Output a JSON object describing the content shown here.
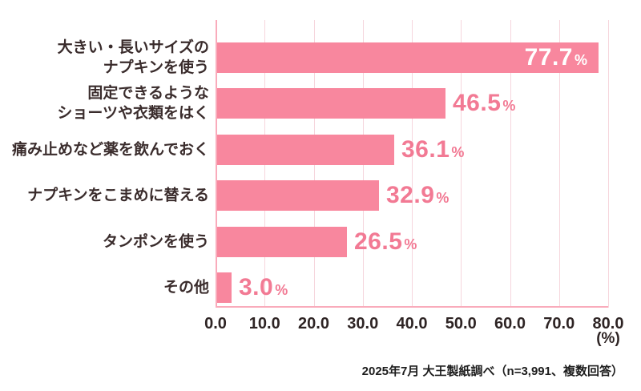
{
  "chart_data": {
    "type": "bar",
    "orientation": "horizontal",
    "title": "",
    "categories": [
      "大きい・長いサイズの\nナプキンを使う",
      "固定できるような\nショーツや衣類をはく",
      "痛み止めなど薬を飲んでおく",
      "ナプキンをこまめに替える",
      "タンポンを使う",
      "その他"
    ],
    "values": [
      77.7,
      46.5,
      36.1,
      32.9,
      26.5,
      3.0
    ],
    "value_labels": [
      "77.7",
      "46.5",
      "36.1",
      "32.9",
      "26.5",
      "3.0"
    ],
    "value_suffix": "%",
    "xlabel": "(%)",
    "ylabel": "",
    "xlim": [
      0,
      80
    ],
    "xtick_labels": [
      "0.0",
      "10.0",
      "20.0",
      "30.0",
      "40.0",
      "50.0",
      "60.0",
      "70.0",
      "80.0"
    ],
    "grid": true,
    "legend": "none",
    "value_label_placement": [
      "inside",
      "outside",
      "outside",
      "outside",
      "outside",
      "outside"
    ],
    "source_note": "2025年7月 大王製紙調べ（n=3,991、複数回答）",
    "colors": {
      "bar": "#f8879e",
      "value_outside": "#f27a94",
      "value_inside": "#ffffff",
      "gridline": "#f6d6dd",
      "axis": "#f9abbb",
      "category_text": "#3a2c2c",
      "tick_text": "#2e2424",
      "source_text": "#1d1d1d",
      "background": "#ffffff"
    }
  }
}
